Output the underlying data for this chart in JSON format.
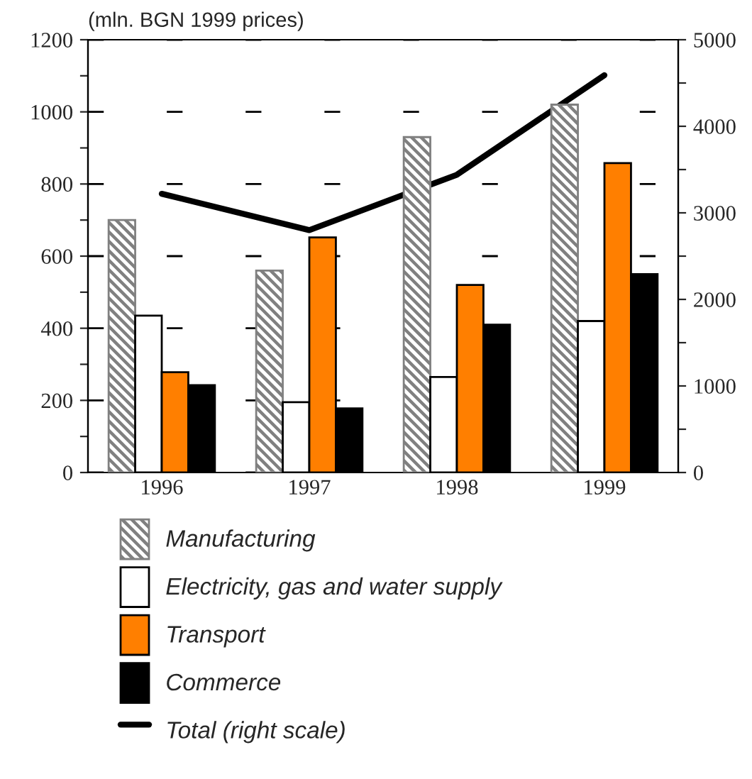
{
  "chart_data": {
    "type": "bar",
    "ylabel": "(mln. BGN 1999 prices)",
    "categories": [
      "1996",
      "1997",
      "1998",
      "1999"
    ],
    "series": [
      {
        "name": "Manufacturing",
        "color": "#808080",
        "values": [
          700,
          560,
          930,
          1020
        ]
      },
      {
        "name": "Electricity, gas and water supply",
        "color": "#ffffff",
        "values": [
          435,
          195,
          265,
          420
        ]
      },
      {
        "name": "Transport",
        "color": "#ff7f00",
        "values": [
          278,
          652,
          520,
          858
        ]
      },
      {
        "name": "Commerce",
        "color": "#000000",
        "values": [
          242,
          178,
          410,
          550
        ]
      },
      {
        "name": "Total (right scale)",
        "type": "line",
        "axis": "y2",
        "color": "#000000",
        "values": [
          3220,
          2800,
          3440,
          4590
        ]
      }
    ],
    "ylim": [
      0,
      1200
    ],
    "yticks": [
      0,
      {
        "value": 100,
        "label": null
      },
      200,
      {
        "value": 300,
        "label": null
      },
      400,
      {
        "value": 500,
        "label": null
      },
      600,
      {
        "value": 700,
        "label": null
      },
      800,
      {
        "value": 900,
        "label": null
      },
      1000,
      {
        "value": 1100,
        "label": null
      },
      1200
    ],
    "y2lim": [
      0,
      5000
    ],
    "y2ticks": [
      0,
      {
        "value": 500,
        "label": null
      },
      1000,
      {
        "value": 1500,
        "label": null
      },
      2000,
      {
        "value": 2500,
        "label": null
      },
      3000,
      {
        "value": 3500,
        "label": null
      },
      4000,
      {
        "value": 4500,
        "label": null
      },
      5000
    ],
    "grid": "y",
    "legend": "bottom",
    "marker": "none",
    "line_style": "solid"
  }
}
